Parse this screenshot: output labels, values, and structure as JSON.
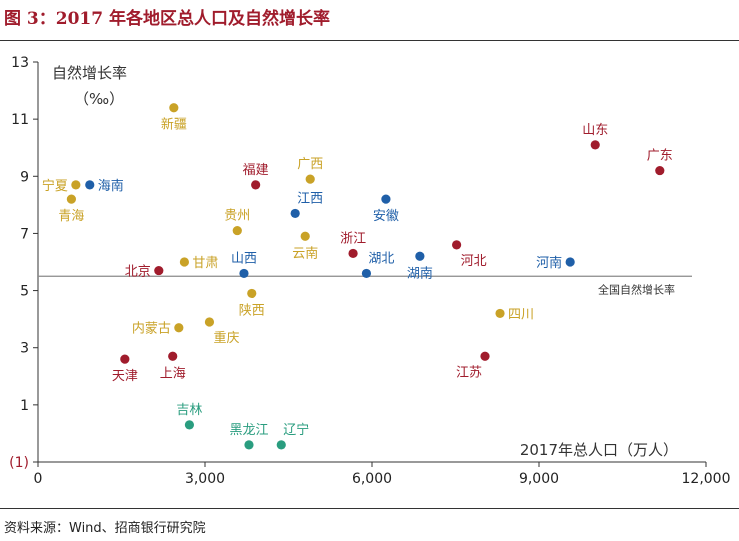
{
  "figure": {
    "title": "图 3：2017 年各地区总人口及自然增长率",
    "source": "资料来源：Wind、招商银行研究院"
  },
  "colors": {
    "red": "#a01c2c",
    "blue": "#1f5fa8",
    "gold": "#c9a227",
    "teal": "#2a9d7f",
    "reference_line": "#8a8a8a",
    "axis": "#333333"
  },
  "chart_data": {
    "type": "scatter",
    "title": "",
    "xlabel": "2017年总人口（万人）",
    "ylabel": "自然增长率",
    "ylabel_unit": "（‰）",
    "xlim": [
      0,
      12000
    ],
    "ylim": [
      -1,
      13
    ],
    "x_ticks": [
      {
        "value": 0,
        "label": "0"
      },
      {
        "value": 3000,
        "label": "3,000"
      },
      {
        "value": 6000,
        "label": "6,000"
      },
      {
        "value": 9000,
        "label": "9,000"
      },
      {
        "value": 12000,
        "label": "12,000"
      }
    ],
    "y_ticks": [
      {
        "value": -1,
        "label": "(1)"
      },
      {
        "value": 1,
        "label": "1"
      },
      {
        "value": 3,
        "label": "3"
      },
      {
        "value": 5,
        "label": "5"
      },
      {
        "value": 7,
        "label": "7"
      },
      {
        "value": 9,
        "label": "9"
      },
      {
        "value": 11,
        "label": "11"
      },
      {
        "value": 13,
        "label": "13"
      }
    ],
    "reference_line": {
      "y": 5.5,
      "label": "全国自然增长率"
    },
    "grid": false,
    "points": [
      {
        "name": "新疆",
        "x": 2440,
        "y": 11.4,
        "group": "gold",
        "anchor": "below"
      },
      {
        "name": "山东",
        "x": 10010,
        "y": 10.1,
        "group": "red",
        "anchor": "above"
      },
      {
        "name": "广东",
        "x": 11170,
        "y": 9.2,
        "group": "red",
        "anchor": "above"
      },
      {
        "name": "福建",
        "x": 3910,
        "y": 8.7,
        "group": "red",
        "anchor": "above"
      },
      {
        "name": "广西",
        "x": 4890,
        "y": 8.9,
        "group": "gold",
        "anchor": "above"
      },
      {
        "name": "宁夏",
        "x": 680,
        "y": 8.7,
        "group": "gold",
        "anchor": "left"
      },
      {
        "name": "海南",
        "x": 930,
        "y": 8.7,
        "group": "blue",
        "anchor": "right"
      },
      {
        "name": "青海",
        "x": 600,
        "y": 8.2,
        "group": "gold",
        "anchor": "below"
      },
      {
        "name": "江西",
        "x": 4620,
        "y": 7.7,
        "group": "blue",
        "anchor": "above-right"
      },
      {
        "name": "安徽",
        "x": 6250,
        "y": 8.2,
        "group": "blue",
        "anchor": "below"
      },
      {
        "name": "贵州",
        "x": 3580,
        "y": 7.1,
        "group": "gold",
        "anchor": "above"
      },
      {
        "name": "云南",
        "x": 4800,
        "y": 6.9,
        "group": "gold",
        "anchor": "below"
      },
      {
        "name": "浙江",
        "x": 5660,
        "y": 6.3,
        "group": "red",
        "anchor": "above"
      },
      {
        "name": "河北",
        "x": 7520,
        "y": 6.6,
        "group": "red",
        "anchor": "below-right"
      },
      {
        "name": "湖南",
        "x": 6860,
        "y": 6.2,
        "group": "blue",
        "anchor": "below"
      },
      {
        "name": "河南",
        "x": 9560,
        "y": 6.0,
        "group": "blue",
        "anchor": "left"
      },
      {
        "name": "北京",
        "x": 2170,
        "y": 5.7,
        "group": "red",
        "anchor": "left"
      },
      {
        "name": "甘肃",
        "x": 2630,
        "y": 6.0,
        "group": "gold",
        "anchor": "right"
      },
      {
        "name": "山西",
        "x": 3700,
        "y": 5.6,
        "group": "blue",
        "anchor": "above"
      },
      {
        "name": "湖北",
        "x": 5900,
        "y": 5.6,
        "group": "blue",
        "anchor": "above-right"
      },
      {
        "name": "陕西",
        "x": 3840,
        "y": 4.9,
        "group": "gold",
        "anchor": "below"
      },
      {
        "name": "四川",
        "x": 8300,
        "y": 4.2,
        "group": "gold",
        "anchor": "right"
      },
      {
        "name": "内蒙古",
        "x": 2530,
        "y": 3.7,
        "group": "gold",
        "anchor": "left"
      },
      {
        "name": "重庆",
        "x": 3080,
        "y": 3.9,
        "group": "gold",
        "anchor": "below-right"
      },
      {
        "name": "天津",
        "x": 1560,
        "y": 2.6,
        "group": "red",
        "anchor": "below"
      },
      {
        "name": "上海",
        "x": 2420,
        "y": 2.7,
        "group": "red",
        "anchor": "below"
      },
      {
        "name": "江苏",
        "x": 8030,
        "y": 2.7,
        "group": "red",
        "anchor": "below-left"
      },
      {
        "name": "吉林",
        "x": 2720,
        "y": 0.3,
        "group": "teal",
        "anchor": "above"
      },
      {
        "name": "黑龙江",
        "x": 3790,
        "y": -0.4,
        "group": "teal",
        "anchor": "above"
      },
      {
        "name": "辽宁",
        "x": 4370,
        "y": -0.4,
        "group": "teal",
        "anchor": "above-right"
      }
    ]
  }
}
